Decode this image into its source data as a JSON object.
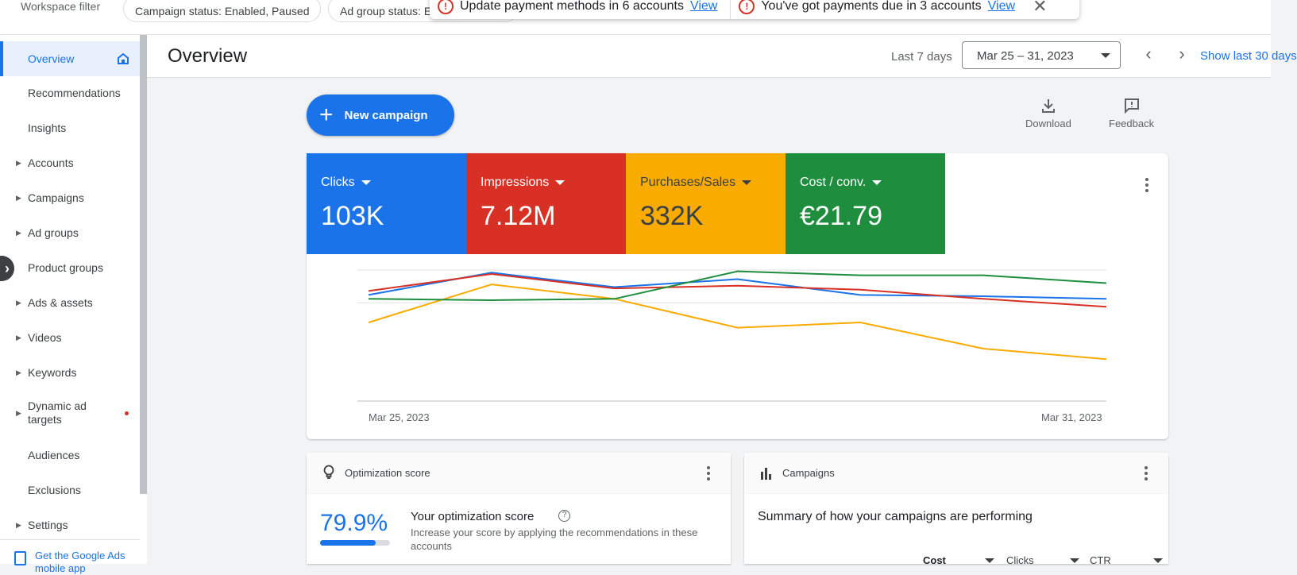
{
  "topbar": {
    "workspace_filter_label": "Workspace filter",
    "chips": [
      "Campaign status: Enabled, Paused",
      "Ad group status: E"
    ]
  },
  "alerts": [
    {
      "text": "Update payment methods in 6 accounts",
      "link": "View"
    },
    {
      "text": "You've got payments due in 3 accounts",
      "link": "View"
    }
  ],
  "sidebar": {
    "items": [
      {
        "label": "Overview",
        "active": true,
        "expandable": false
      },
      {
        "label": "Recommendations",
        "active": false,
        "expandable": false
      },
      {
        "label": "Insights",
        "active": false,
        "expandable": false
      },
      {
        "label": "Accounts",
        "active": false,
        "expandable": true
      },
      {
        "label": "Campaigns",
        "active": false,
        "expandable": true
      },
      {
        "label": "Ad groups",
        "active": false,
        "expandable": true
      },
      {
        "label": "Product groups",
        "active": false,
        "expandable": false
      },
      {
        "label": "Ads & assets",
        "active": false,
        "expandable": true
      },
      {
        "label": "Videos",
        "active": false,
        "expandable": true
      },
      {
        "label": "Keywords",
        "active": false,
        "expandable": true
      },
      {
        "label": "Dynamic ad targets",
        "active": false,
        "expandable": true,
        "badge": "red-dot"
      },
      {
        "label": "Audiences",
        "active": false,
        "expandable": false
      },
      {
        "label": "Exclusions",
        "active": false,
        "expandable": false
      },
      {
        "label": "Settings",
        "active": false,
        "expandable": true
      }
    ],
    "get_app_label": "Get the Google Ads mobile app"
  },
  "header": {
    "title": "Overview",
    "range_label": "Last 7 days",
    "date_range": "Mar 25 – 31, 2023",
    "show_last": "Show last 30 days"
  },
  "toolbar": {
    "new_campaign_label": "New campaign",
    "download_label": "Download",
    "feedback_label": "Feedback"
  },
  "metrics": [
    {
      "label": "Clicks",
      "value": "103K",
      "color": "#1a73e8"
    },
    {
      "label": "Impressions",
      "value": "7.12M",
      "color": "#d93025"
    },
    {
      "label": "Purchases/Sales",
      "value": "332K",
      "color": "#f9ab00"
    },
    {
      "label": "Cost / conv.",
      "value": "€21.79",
      "color": "#1e8e3e"
    }
  ],
  "chart_data": {
    "type": "line",
    "x": [
      "Mar 25, 2023",
      "Mar 26, 2023",
      "Mar 27, 2023",
      "Mar 28, 2023",
      "Mar 29, 2023",
      "Mar 30, 2023",
      "Mar 31, 2023"
    ],
    "x_tick_labels": [
      "Mar 25, 2023",
      "Mar 31, 2023"
    ],
    "ylim": [
      0,
      100
    ],
    "grid": true,
    "series": [
      {
        "name": "Clicks",
        "color": "#1a73e8",
        "values": [
          81,
          98,
          87,
          93,
          81,
          80,
          78
        ]
      },
      {
        "name": "Impressions",
        "color": "#d93025",
        "values": [
          84,
          97,
          86,
          88,
          85,
          78,
          72
        ]
      },
      {
        "name": "Purchases/Sales",
        "color": "#f9ab00",
        "values": [
          60,
          89,
          78,
          56,
          60,
          40,
          32
        ]
      },
      {
        "name": "Cost / conv.",
        "color": "#1e8e3e",
        "values": [
          78,
          77,
          78,
          99,
          96,
          96,
          90
        ]
      }
    ]
  },
  "optimization": {
    "header": "Optimization score",
    "score": "79.9%",
    "score_fraction": 0.799,
    "title": "Your optimization score",
    "description": "Increase your score by applying the recommendations in these accounts"
  },
  "campaigns_card": {
    "header": "Campaigns",
    "summary": "Summary of how your campaigns are performing",
    "columns": [
      "Cost",
      "Clicks",
      "CTR"
    ]
  }
}
